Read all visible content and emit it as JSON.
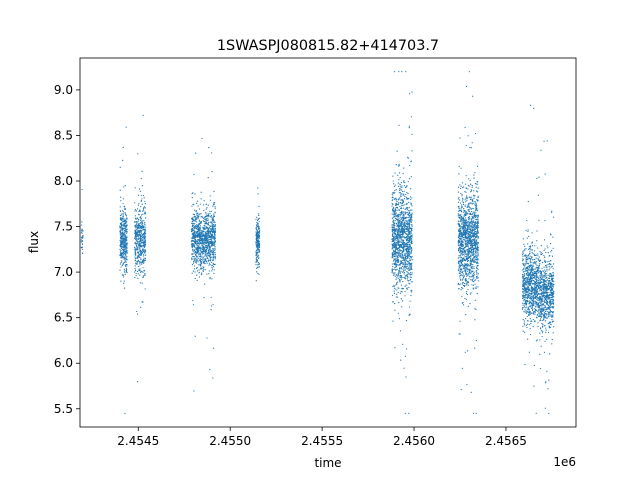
{
  "chart_data": {
    "type": "scatter",
    "title": "1SWASPJ080815.82+414703.7",
    "xlabel": "time",
    "ylabel": "flux",
    "x_offset_label": "1e6",
    "xlim": [
      2454183,
      2456881
    ],
    "ylim": [
      5.3,
      9.35
    ],
    "x_ticks": [
      2454500,
      2455000,
      2455500,
      2456000,
      2456500
    ],
    "x_tick_labels": [
      "2.4545",
      "2.4550",
      "2.4555",
      "2.4560",
      "2.4565"
    ],
    "y_ticks": [
      5.5,
      6.0,
      6.5,
      7.0,
      7.5,
      8.0,
      8.5,
      9.0
    ],
    "y_tick_labels": [
      "5.5",
      "6.0",
      "6.5",
      "7.0",
      "7.5",
      "8.0",
      "8.5",
      "9.0"
    ],
    "grid": false,
    "marker_color": "#1f77b4",
    "clusters": [
      {
        "x_start": 2454190,
        "x_end": 2454200,
        "y_center": 7.4,
        "y_spread": 0.35,
        "n": 30
      },
      {
        "x_start": 2454400,
        "x_end": 2454440,
        "y_center": 7.35,
        "y_spread": 0.45,
        "n": 400
      },
      {
        "x_start": 2454480,
        "x_end": 2454540,
        "y_center": 7.35,
        "y_spread": 0.55,
        "n": 500
      },
      {
        "x_start": 2454790,
        "x_end": 2454920,
        "y_center": 7.35,
        "y_spread": 0.45,
        "n": 1100
      },
      {
        "x_start": 2455140,
        "x_end": 2455160,
        "y_center": 7.35,
        "y_spread": 0.35,
        "n": 220
      },
      {
        "x_start": 2455880,
        "x_end": 2455990,
        "y_center": 7.35,
        "y_spread": 0.75,
        "n": 1300
      },
      {
        "x_start": 2456240,
        "x_end": 2456350,
        "y_center": 7.35,
        "y_spread": 0.7,
        "n": 1300
      },
      {
        "x_start": 2456590,
        "x_end": 2456680,
        "y_center": 6.85,
        "y_spread": 0.55,
        "n": 800
      },
      {
        "x_start": 2456680,
        "x_end": 2456760,
        "y_center": 6.75,
        "y_spread": 0.55,
        "n": 700
      }
    ]
  }
}
